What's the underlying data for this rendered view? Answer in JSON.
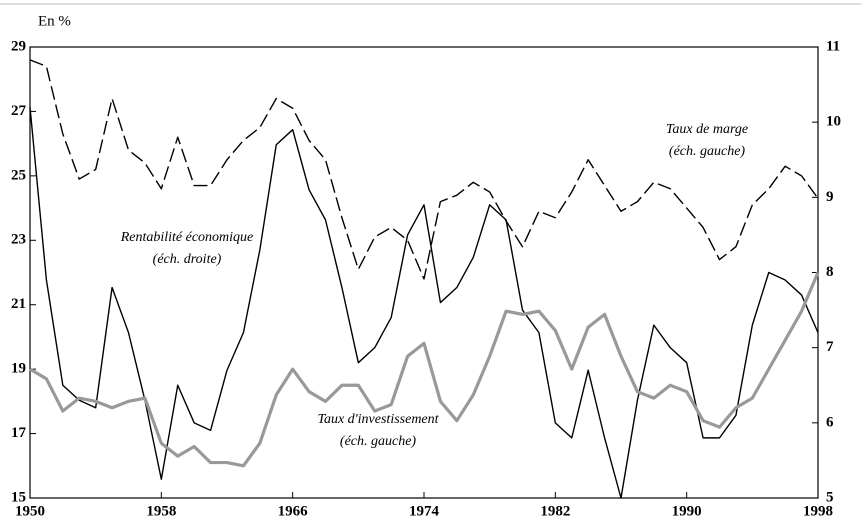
{
  "chart_data": {
    "type": "line",
    "unit_label": "En %",
    "x": [
      1950,
      1951,
      1952,
      1953,
      1954,
      1955,
      1956,
      1957,
      1958,
      1959,
      1960,
      1961,
      1962,
      1963,
      1964,
      1965,
      1966,
      1967,
      1968,
      1969,
      1970,
      1971,
      1972,
      1973,
      1974,
      1975,
      1976,
      1977,
      1978,
      1979,
      1980,
      1981,
      1982,
      1983,
      1984,
      1985,
      1986,
      1987,
      1988,
      1989,
      1990,
      1991,
      1992,
      1993,
      1994,
      1995,
      1996,
      1997,
      1998
    ],
    "xlim": [
      1950,
      1998
    ],
    "xticks": [
      1950,
      1958,
      1966,
      1974,
      1982,
      1990,
      1998
    ],
    "ylim": [
      15,
      29
    ],
    "yticks": [
      15,
      17,
      19,
      21,
      23,
      25,
      27,
      29
    ],
    "y2lim": [
      5,
      11
    ],
    "y2ticks": [
      5,
      6,
      7,
      8,
      9,
      10,
      11
    ],
    "series": [
      {
        "name": "Taux de marge",
        "scale_label": "(éch. gauche)",
        "color": "#000000",
        "style": "dashed",
        "axis": "y",
        "values": [
          28.6,
          28.4,
          26.3,
          24.9,
          25.2,
          27.4,
          25.8,
          25.4,
          24.6,
          26.2,
          24.7,
          24.7,
          25.5,
          26.1,
          26.5,
          27.4,
          27.1,
          26.1,
          25.5,
          23.7,
          22.1,
          23.1,
          23.4,
          23.0,
          21.8,
          24.2,
          24.4,
          24.8,
          24.5,
          23.6,
          22.8,
          23.9,
          23.7,
          24.5,
          25.5,
          24.7,
          23.9,
          24.2,
          24.8,
          24.6,
          24.0,
          23.4,
          22.4,
          22.8,
          24.1,
          24.6,
          25.3,
          25.0,
          24.3
        ]
      },
      {
        "name": "Rentabilité économique",
        "scale_label": "(éch. droite)",
        "color": "#000000",
        "style": "solid",
        "axis": "y2",
        "values": [
          10.2,
          7.9,
          6.5,
          6.3,
          6.2,
          7.8,
          7.2,
          6.3,
          5.25,
          6.5,
          6.0,
          5.9,
          6.7,
          7.2,
          8.3,
          9.7,
          9.9,
          9.1,
          8.7,
          7.8,
          6.8,
          7.0,
          7.4,
          8.5,
          8.9,
          7.6,
          7.8,
          8.2,
          8.9,
          8.7,
          7.5,
          7.2,
          6.0,
          5.8,
          6.7,
          5.8,
          5.0,
          6.3,
          7.3,
          7.0,
          6.8,
          5.8,
          5.8,
          6.1,
          7.3,
          8.0,
          7.9,
          7.7,
          7.2
        ]
      },
      {
        "name": "Taux d'investissement",
        "scale_label": "(éch. gauche)",
        "color": "#999999",
        "style": "thick",
        "axis": "y",
        "values": [
          19.0,
          18.7,
          17.7,
          18.1,
          18.0,
          17.8,
          18.0,
          18.1,
          16.7,
          16.3,
          16.6,
          16.1,
          16.1,
          16.0,
          16.7,
          18.2,
          19.0,
          18.3,
          18.0,
          18.5,
          18.5,
          17.7,
          17.9,
          19.4,
          19.8,
          18.0,
          17.4,
          18.2,
          19.4,
          20.8,
          20.7,
          20.8,
          20.2,
          19.0,
          20.3,
          20.7,
          19.4,
          18.3,
          18.1,
          18.5,
          18.3,
          17.4,
          17.2,
          17.8,
          18.1,
          19.0,
          19.9,
          20.8,
          22.0
        ]
      }
    ]
  }
}
